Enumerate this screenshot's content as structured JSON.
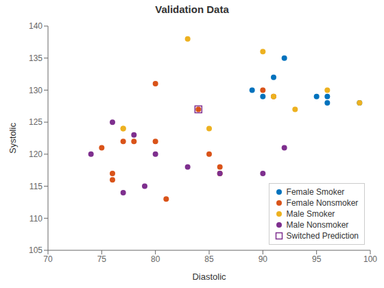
{
  "chart_data": {
    "type": "scatter",
    "title": "Validation Data",
    "x_label": "Diastolic",
    "y_label": "Systolic",
    "xlim": [
      70,
      100
    ],
    "ylim": [
      105,
      140
    ],
    "xticks": [
      70,
      75,
      80,
      85,
      90,
      95,
      100
    ],
    "yticks": [
      105,
      110,
      115,
      120,
      125,
      130,
      135,
      140
    ],
    "grid": false,
    "legend": "lower right",
    "series": [
      {
        "name": "Female Smoker",
        "color": "#0072BD",
        "marker": "circle",
        "x": [
          89,
          90,
          91,
          92,
          95,
          96,
          96,
          99
        ],
        "values": [
          130,
          129,
          132,
          135,
          129,
          129,
          128,
          128
        ]
      },
      {
        "name": "Female Nonsmoker",
        "color": "#D95319",
        "marker": "circle",
        "x": [
          75,
          76,
          76,
          77,
          78,
          80,
          80,
          81,
          84,
          85,
          86,
          86,
          90,
          91
        ],
        "values": [
          121,
          117,
          116,
          122,
          122,
          131,
          122,
          113,
          127,
          120,
          118,
          117,
          130,
          129
        ]
      },
      {
        "name": "Male Smoker",
        "color": "#EDB120",
        "marker": "circle",
        "x": [
          77,
          77,
          83,
          85,
          90,
          91,
          93,
          96,
          99
        ],
        "values": [
          124,
          124,
          138,
          124,
          136,
          129,
          127,
          130,
          128
        ]
      },
      {
        "name": "Male Nonsmoker",
        "color": "#7E2F8E",
        "marker": "circle",
        "x": [
          74,
          76,
          77,
          78,
          79,
          80,
          83,
          86,
          90,
          92
        ],
        "values": [
          120,
          125,
          114,
          123,
          115,
          120,
          118,
          117,
          117,
          121
        ]
      },
      {
        "name": "Switched Prediction",
        "color": "#7E2F8E",
        "marker": "hollow-square",
        "x": [
          84
        ],
        "values": [
          127
        ]
      }
    ]
  }
}
